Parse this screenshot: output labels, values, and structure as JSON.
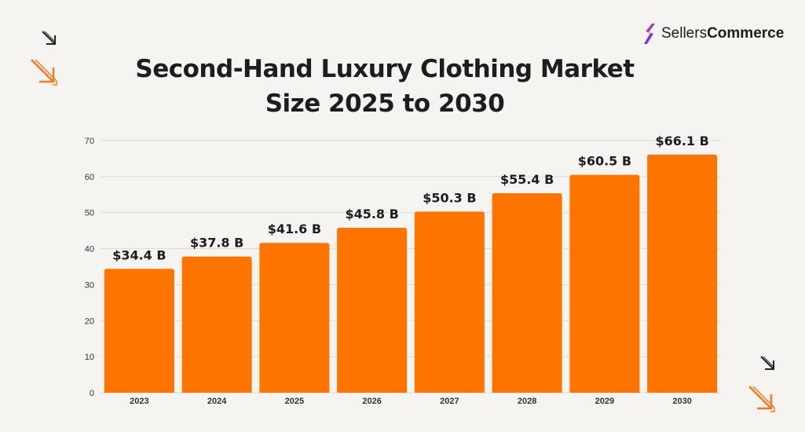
{
  "brand": {
    "name_light": "Sellers",
    "name_bold": "Commerce",
    "icon": "sellerscommerce-logo-icon"
  },
  "title": {
    "line1": "Second-Hand Luxury Clothing Market",
    "line2": "Size 2025 to 2030"
  },
  "colors": {
    "bar": "#fe7400",
    "accent": "#f47a20",
    "grid": "#dddad5",
    "text": "#1d1d1f"
  },
  "decorations": [
    "arrow-down-right-icon",
    "arrow-down-right-outline-icon"
  ],
  "chart_data": {
    "type": "bar",
    "categories": [
      "2023",
      "2024",
      "2025",
      "2026",
      "2027",
      "2028",
      "2029",
      "2030"
    ],
    "values": [
      34.4,
      37.8,
      41.6,
      45.8,
      50.3,
      55.4,
      60.5,
      66.1
    ],
    "data_labels": [
      "$34.4 B",
      "$37.8 B",
      "$41.6 B",
      "$45.8 B",
      "$50.3 B",
      "$55.4 B",
      "$60.5 B",
      "$66.1 B"
    ],
    "ylim": [
      0,
      70
    ],
    "yticks": [
      0,
      10,
      20,
      30,
      40,
      50,
      60,
      70
    ],
    "grid": true,
    "legend": "none"
  }
}
